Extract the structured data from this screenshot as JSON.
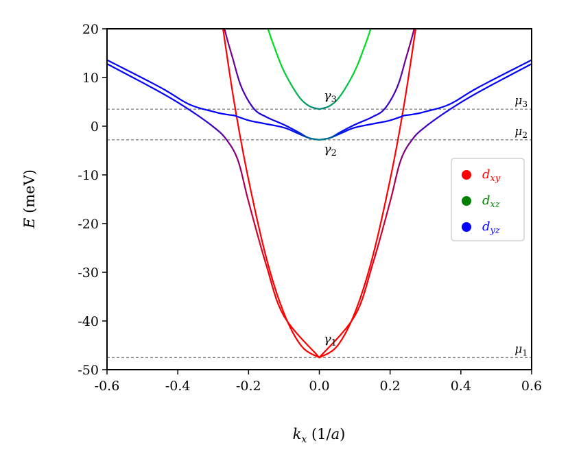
{
  "chart_data": {
    "type": "line",
    "title": "",
    "xlabel": "k_x (1/a)",
    "ylabel": "E (meV)",
    "xlim": [
      -0.6,
      0.6
    ],
    "ylim": [
      -50,
      20
    ],
    "xticks": [
      "-0.6",
      "-0.4",
      "-0.2",
      "0.0",
      "0.2",
      "0.4",
      "0.6"
    ],
    "xtick_values": [
      -0.6,
      -0.4,
      -0.2,
      0.0,
      0.2,
      0.4,
      0.6
    ],
    "yticks": [
      "20",
      "10",
      "0",
      "-10",
      "-20",
      "-30",
      "-40",
      "-50"
    ],
    "ytick_values": [
      20,
      10,
      0,
      -10,
      -20,
      -30,
      -40,
      -50
    ],
    "grid": false,
    "symmetric_in_k": true,
    "bands": [
      {
        "x": [
          0,
          0.05,
          0.1,
          0.15,
          0.2,
          0.235,
          0.26,
          0.28
        ],
        "y": [
          -47.5,
          -45.2,
          -38.4,
          -27,
          -11,
          2.5,
          14,
          24
        ],
        "colors": [
          "#ff0000",
          "#ff0000",
          "#ff0000",
          "#ff0000",
          "#ff0000",
          "#ff0010",
          "#ff0000",
          "#ff0000"
        ]
      },
      {
        "x": [
          0,
          0.1,
          0.15,
          0.2,
          0.23,
          0.263,
          0.3,
          0.368,
          0.45,
          0.6
        ],
        "y": [
          -47.5,
          -39,
          -28.5,
          -15.5,
          -7,
          -2.7,
          -0.1,
          3.4,
          7,
          12.8
        ],
        "colors": [
          "#ff0000",
          "#ff0000",
          "#f00010",
          "#c00040",
          "#900070",
          "#700090",
          "#4000c0",
          "#1000f0",
          "#0000ff",
          "#0000ff"
        ]
      },
      {
        "x": [
          0.24,
          0.27,
          0.3,
          0.368,
          0.45,
          0.6
        ],
        "y": [
          2.2,
          2.5,
          3,
          4.5,
          8,
          13.6
        ],
        "colors": [
          "#0000ff",
          "#0000ff",
          "#0000ff",
          "#0000ff",
          "#0000ff",
          "#0000ff"
        ]
      },
      {
        "x": [
          0,
          0.03,
          0.06,
          0.1,
          0.16,
          0.2,
          0.24
        ],
        "y": [
          -2.8,
          -2.4,
          -1.5,
          -0.3,
          0.6,
          1.2,
          2.2
        ],
        "colors": [
          "#008080",
          "#006898",
          "#0020e0",
          "#0000ff",
          "#0000ff",
          "#0000ff",
          "#0000ff"
        ]
      },
      {
        "x": [
          0,
          0.03,
          0.06,
          0.1,
          0.15,
          0.185,
          0.22,
          0.245,
          0.268,
          0.285
        ],
        "y": [
          -2.8,
          -2.4,
          -1.2,
          0.3,
          1.9,
          3.6,
          8,
          14,
          20,
          26
        ],
        "colors": [
          "#008080",
          "#006898",
          "#0020e0",
          "#0000ff",
          "#1000f0",
          "#3000d0",
          "#5000b0",
          "#700090",
          "#800080",
          "#800080"
        ]
      },
      {
        "x": [
          0,
          0.03,
          0.06,
          0.1,
          0.13,
          0.145,
          0.16
        ],
        "y": [
          3.5,
          4.2,
          6.3,
          11.3,
          16.8,
          20,
          23.6
        ],
        "colors": [
          "#008080",
          "#009070",
          "#00b050",
          "#00d030",
          "#00e020",
          "#00e020",
          "#00e020"
        ]
      }
    ],
    "hlines": [
      {
        "y": 3.5,
        "label": "μ3"
      },
      {
        "y": -2.8,
        "label": "μ2"
      },
      {
        "y": -47.5,
        "label": "μ1"
      }
    ],
    "annotations": [
      {
        "text": "γ3",
        "x": 0.02,
        "y": 5.5
      },
      {
        "text": "γ2",
        "x": 0.02,
        "y": -5.5
      },
      {
        "text": "γ1",
        "x": 0.02,
        "y": -44.5
      }
    ],
    "legend": {
      "placement": "center-right",
      "entries": [
        {
          "label": "d_xy",
          "color": "#ff0000"
        },
        {
          "label": "d_xz",
          "color": "#008000"
        },
        {
          "label": "d_yz",
          "color": "#0000ff"
        }
      ]
    }
  }
}
